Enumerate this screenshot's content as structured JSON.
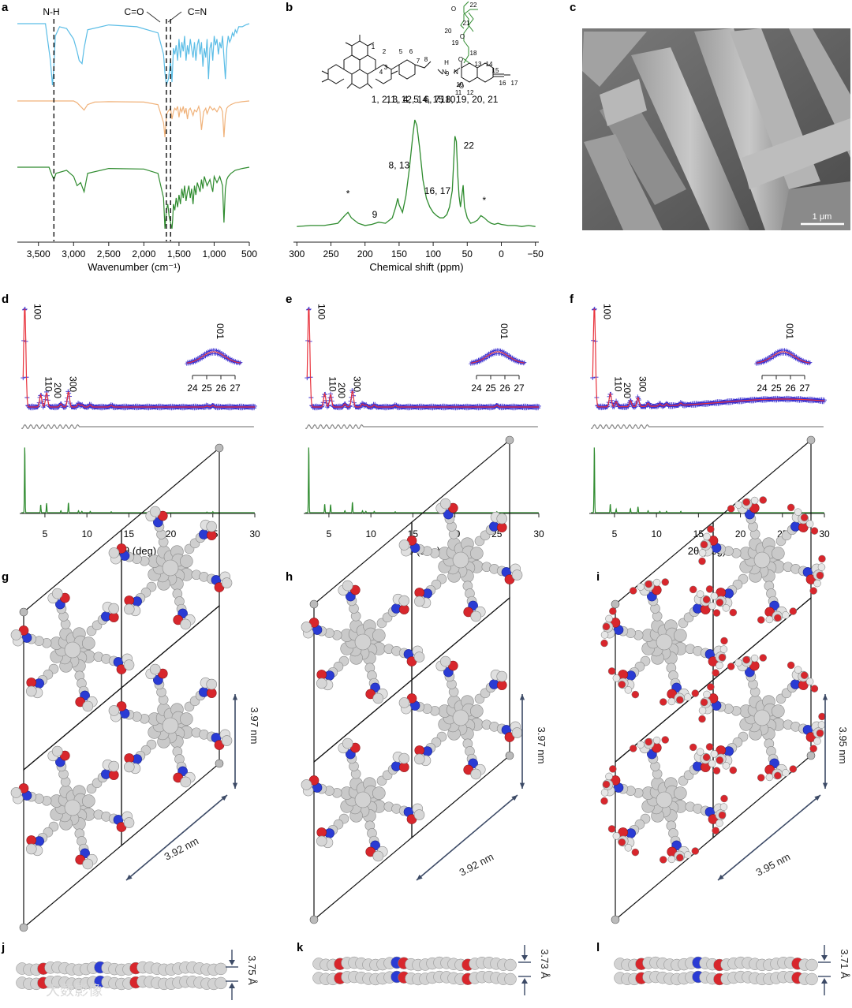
{
  "panels": {
    "a": {
      "letter": "a"
    },
    "b": {
      "letter": "b"
    },
    "c": {
      "letter": "c"
    },
    "d": {
      "letter": "d"
    },
    "e": {
      "letter": "e"
    },
    "f": {
      "letter": "f"
    },
    "g": {
      "letter": "g"
    },
    "h": {
      "letter": "h"
    },
    "i": {
      "letter": "i"
    },
    "j": {
      "letter": "j"
    },
    "k": {
      "letter": "k"
    },
    "l": {
      "letter": "l"
    }
  },
  "colors": {
    "blue": "#5bbde6",
    "orange": "#f0b27a",
    "green": "#2e8b2e",
    "red": "#e8323c",
    "crosses": "#3a2fd0",
    "grey": "#888888",
    "sem_bg": "#6e6e6e"
  },
  "chart_data": [
    {
      "id": "a",
      "type": "line",
      "xlabel": "Wavenumber (cm⁻¹)",
      "xticks": [
        "3,500",
        "3,000",
        "2,500",
        "2,000",
        "1,500",
        "1,000",
        "500"
      ],
      "xtick_values": [
        3500,
        3000,
        2500,
        2000,
        1500,
        1000,
        500
      ],
      "xlim": [
        3800,
        500
      ],
      "series": [
        {
          "color": "#5bbde6",
          "x": [
            3800,
            3400,
            3330,
            3300,
            3280,
            3260,
            3200,
            3100,
            3000,
            2950,
            2920,
            2880,
            2850,
            2800,
            2500,
            2100,
            1800,
            1720,
            1700,
            1680,
            1650,
            1620,
            1600,
            1590,
            1580,
            1560,
            1540,
            1520,
            1500,
            1480,
            1460,
            1440,
            1420,
            1400,
            1380,
            1360,
            1340,
            1320,
            1300,
            1280,
            1260,
            1240,
            1220,
            1200,
            1180,
            1160,
            1140,
            1120,
            1100,
            1080,
            1060,
            1040,
            1020,
            1000,
            980,
            960,
            940,
            920,
            900,
            880,
            860,
            840,
            820,
            800,
            780,
            760,
            740,
            720,
            700,
            680,
            650,
            600,
            550,
            500
          ],
          "y": [
            0,
            0,
            0.6,
            1.0,
            0.7,
            0.2,
            0.05,
            0.08,
            0.25,
            0.45,
            0.6,
            0.65,
            0.4,
            0.1,
            0.02,
            0.05,
            0.15,
            0.5,
            0.8,
            1.0,
            0.9,
            0.6,
            0.95,
            0.7,
            0.4,
            0.5,
            0.35,
            0.6,
            0.25,
            0.55,
            0.3,
            0.45,
            0.2,
            0.6,
            0.35,
            0.5,
            0.25,
            0.4,
            0.55,
            0.3,
            0.6,
            0.35,
            0.25,
            0.5,
            0.3,
            0.7,
            0.4,
            0.55,
            0.25,
            0.9,
            0.4,
            0.3,
            0.6,
            0.2,
            0.35,
            0.25,
            0.5,
            0.3,
            0.4,
            0.2,
            0.55,
            0.9,
            0.4,
            0.2,
            0.3,
            0.25,
            0.15,
            0.2,
            0.1,
            0.15,
            0.05,
            0.05,
            0.02,
            0
          ]
        },
        {
          "color": "#f0b27a",
          "x": [
            3800,
            3000,
            2950,
            2900,
            2850,
            2800,
            2700,
            2500,
            2000,
            1800,
            1720,
            1700,
            1690,
            1680,
            1660,
            1620,
            1600,
            1580,
            1560,
            1540,
            1520,
            1500,
            1480,
            1460,
            1440,
            1420,
            1400,
            1380,
            1360,
            1340,
            1300,
            1280,
            1250,
            1220,
            1200,
            1180,
            1150,
            1120,
            1100,
            1060,
            1020,
            1000,
            960,
            920,
            900,
            880,
            860,
            840,
            820,
            800,
            760,
            700,
            600,
            500
          ],
          "y": [
            0,
            0,
            0.05,
            0.15,
            0.25,
            0.1,
            0.03,
            0.02,
            0.03,
            0.1,
            0.6,
            1.0,
            0.7,
            0.4,
            0.3,
            0.2,
            0.5,
            0.3,
            0.2,
            0.25,
            0.15,
            0.45,
            0.2,
            0.3,
            0.15,
            0.35,
            0.2,
            0.5,
            0.25,
            0.2,
            0.4,
            0.25,
            0.3,
            0.15,
            0.3,
            0.8,
            0.3,
            0.2,
            0.35,
            0.15,
            0.25,
            0.2,
            0.3,
            0.15,
            0.2,
            0.3,
            1.0,
            0.4,
            0.2,
            0.15,
            0.1,
            0.05,
            0.02,
            0
          ]
        },
        {
          "color": "#2e8b2e",
          "x": [
            3800,
            3350,
            3300,
            3280,
            3250,
            3100,
            3000,
            2950,
            2900,
            2850,
            2800,
            2500,
            2000,
            1800,
            1720,
            1700,
            1680,
            1660,
            1640,
            1620,
            1600,
            1590,
            1580,
            1560,
            1540,
            1520,
            1500,
            1480,
            1460,
            1440,
            1420,
            1400,
            1380,
            1360,
            1340,
            1320,
            1300,
            1280,
            1260,
            1240,
            1200,
            1180,
            1160,
            1140,
            1100,
            1060,
            1020,
            1000,
            960,
            920,
            880,
            860,
            840,
            820,
            800,
            760,
            700,
            600,
            500
          ],
          "y": [
            0,
            0,
            0.15,
            0.2,
            0.1,
            0.05,
            0.15,
            0.3,
            0.25,
            0.4,
            0.1,
            0.02,
            0.03,
            0.1,
            0.5,
            1.0,
            0.7,
            0.6,
            0.8,
            0.9,
            1.0,
            0.85,
            0.6,
            0.7,
            0.5,
            0.65,
            0.45,
            0.6,
            0.35,
            0.5,
            0.3,
            0.55,
            0.4,
            0.3,
            0.5,
            0.35,
            0.6,
            0.3,
            0.45,
            0.25,
            0.4,
            0.2,
            0.35,
            0.15,
            0.3,
            0.2,
            0.4,
            0.15,
            0.25,
            0.15,
            0.3,
            0.9,
            0.35,
            0.2,
            0.15,
            0.1,
            0.05,
            0.02,
            0
          ]
        }
      ],
      "markers": [
        {
          "label": "N-H",
          "x": 3280
        },
        {
          "label": "C=O",
          "x": 1680
        },
        {
          "label": "C=N",
          "x": 1620
        }
      ]
    },
    {
      "id": "b",
      "type": "line",
      "xlabel": "Chemical shift (ppm)",
      "xticks": [
        "300",
        "250",
        "200",
        "150",
        "100",
        "50",
        "0",
        "−50"
      ],
      "xtick_values": [
        300,
        250,
        200,
        150,
        100,
        50,
        0,
        -50
      ],
      "xlim": [
        305,
        -55
      ],
      "series": [
        {
          "color": "#2e8b2e",
          "x": [
            300,
            280,
            260,
            240,
            230,
            225,
            220,
            210,
            200,
            190,
            180,
            170,
            160,
            155,
            152,
            150,
            145,
            140,
            135,
            130,
            127,
            124,
            120,
            115,
            110,
            105,
            100,
            95,
            90,
            85,
            80,
            76,
            72,
            70,
            68,
            66,
            64,
            62,
            60,
            58,
            56,
            54,
            50,
            45,
            40,
            35,
            30,
            25,
            20,
            15,
            10,
            5,
            0,
            -10,
            -20,
            -30,
            -40,
            -50
          ],
          "y": [
            0.02,
            0.03,
            0.03,
            0.05,
            0.12,
            0.15,
            0.1,
            0.05,
            0.03,
            0.04,
            0.06,
            0.05,
            0.1,
            0.2,
            0.28,
            0.22,
            0.15,
            0.3,
            0.55,
            0.85,
            1.0,
            0.95,
            0.75,
            0.45,
            0.28,
            0.2,
            0.15,
            0.12,
            0.1,
            0.1,
            0.13,
            0.2,
            0.35,
            0.6,
            0.85,
            0.8,
            0.5,
            0.3,
            0.2,
            0.3,
            0.4,
            0.2,
            0.1,
            0.05,
            0.06,
            0.08,
            0.12,
            0.1,
            0.07,
            0.05,
            0.04,
            0.05,
            0.04,
            0.03,
            0.03,
            0.02,
            0.03,
            0.02
          ]
        }
      ],
      "annotations": [
        {
          "text": "*",
          "x": 225
        },
        {
          "text": "9",
          "x": 195
        },
        {
          "text": "8, 13",
          "x": 150
        },
        {
          "text": "1, 2, 3, 4, 5, 6, 7, 10,",
          "x": 127
        },
        {
          "text": "11, 12, 14, 15",
          "x": 127
        },
        {
          "text": "16, 17",
          "x": 88
        },
        {
          "text": "18, 19, 20, 21",
          "x": 68
        },
        {
          "text": "22",
          "x": 57
        },
        {
          "text": "*",
          "x": 25
        }
      ]
    },
    {
      "id": "d",
      "type": "line",
      "xlabel": "2θ (deg)",
      "xticks": [
        "5",
        "10",
        "15",
        "20",
        "25",
        "30"
      ],
      "xtick_values": [
        5,
        10,
        15,
        20,
        25,
        30
      ],
      "xlim": [
        2,
        30
      ],
      "peak_labels": [
        "100",
        "110",
        "200",
        "300",
        "001"
      ],
      "inset_ticks": [
        "24",
        "25",
        "26",
        "27"
      ],
      "sim_peaks": [
        [
          2.6,
          1.0
        ],
        [
          4.5,
          0.12
        ],
        [
          5.2,
          0.14
        ],
        [
          6.9,
          0.03
        ],
        [
          7.8,
          0.15
        ],
        [
          9.0,
          0.03
        ],
        [
          9.4,
          0.02
        ],
        [
          10.4,
          0.02
        ],
        [
          12.9,
          0.015
        ],
        [
          24.3,
          0.01
        ],
        [
          25.0,
          0.015
        ]
      ]
    },
    {
      "id": "e",
      "type": "line",
      "xlabel": "2θ (deg)",
      "xticks": [
        "5",
        "10",
        "15",
        "20",
        "25",
        "30"
      ],
      "xtick_values": [
        5,
        10,
        15,
        20,
        25,
        30
      ],
      "xlim": [
        2,
        30
      ],
      "peak_labels": [
        "100",
        "110",
        "200",
        "300",
        "001"
      ],
      "inset_ticks": [
        "24",
        "25",
        "26",
        "27"
      ],
      "sim_peaks": [
        [
          2.6,
          1.0
        ],
        [
          4.5,
          0.13
        ],
        [
          5.2,
          0.12
        ],
        [
          6.9,
          0.03
        ],
        [
          7.8,
          0.16
        ],
        [
          9.0,
          0.03
        ],
        [
          9.4,
          0.02
        ],
        [
          10.4,
          0.02
        ],
        [
          12.9,
          0.015
        ],
        [
          25.0,
          0.015
        ]
      ]
    },
    {
      "id": "f",
      "type": "line",
      "xlabel": "2θ (deg)",
      "xticks": [
        "5",
        "10",
        "15",
        "20",
        "25",
        "30"
      ],
      "xtick_values": [
        5,
        10,
        15,
        20,
        25,
        30
      ],
      "xlim": [
        2,
        30
      ],
      "peak_labels": [
        "100",
        "110",
        "200",
        "300",
        "001"
      ],
      "inset_ticks": [
        "24",
        "25",
        "26",
        "27"
      ],
      "sim_peaks": [
        [
          2.6,
          1.0
        ],
        [
          4.5,
          0.13
        ],
        [
          5.2,
          0.05
        ],
        [
          6.9,
          0.06
        ],
        [
          7.8,
          0.09
        ],
        [
          9.0,
          0.03
        ],
        [
          10.4,
          0.02
        ],
        [
          11.2,
          0.02
        ],
        [
          12.9,
          0.02
        ]
      ]
    }
  ],
  "sem": {
    "scale_label": "1 μm"
  },
  "structures": {
    "g": {
      "dim_v": "3.97 nm",
      "dim_d": "3.92 nm"
    },
    "h": {
      "dim_v": "3.97 nm",
      "dim_d": "3.92 nm"
    },
    "i": {
      "dim_v": "3.95 nm",
      "dim_d": "3.95 nm"
    },
    "j": {
      "stack": "3.75 Å"
    },
    "k": {
      "stack": "3.73 Å"
    },
    "l": {
      "stack": "3.71 Å"
    }
  },
  "molecule_labels": [
    "1",
    "2",
    "3",
    "4",
    "5",
    "6",
    "7",
    "8",
    "9",
    "10",
    "11",
    "12",
    "13",
    "14",
    "15",
    "16",
    "17",
    "18",
    "19",
    "20",
    "21",
    "22",
    "H",
    "N",
    "N",
    "O",
    "O",
    "O",
    "O"
  ],
  "watermark": "大数影像"
}
